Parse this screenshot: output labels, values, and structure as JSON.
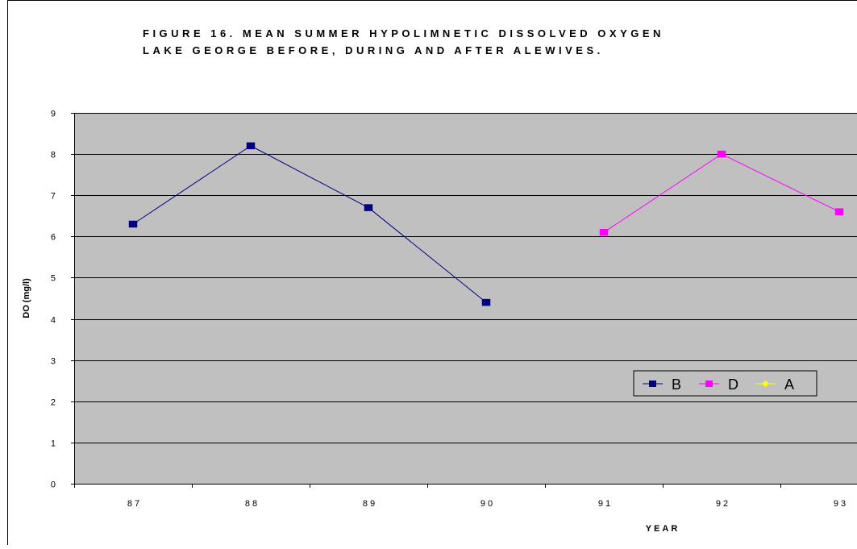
{
  "chart_data": {
    "type": "line",
    "title_lines": [
      "FIGURE 16. MEAN SUMMER HYPOLIMNETIC DISSOLVED OXYGEN",
      "LAKE GEORGE BEFORE, DURING AND AFTER ALEWIVES."
    ],
    "xlabel": "YEAR",
    "ylabel": "DO (mg/l)",
    "categories": [
      "87",
      "88",
      "89",
      "90",
      "91",
      "92",
      "93"
    ],
    "ylim": [
      0,
      9
    ],
    "yticks": [
      "0",
      "1",
      "2",
      "3",
      "4",
      "5",
      "6",
      "7",
      "8",
      "9"
    ],
    "grid": true,
    "legend_position": "lower-right",
    "plot_background": "#c0c0c0",
    "series": [
      {
        "name": "B",
        "color": "#000080",
        "values": [
          6.3,
          8.2,
          6.7,
          4.4,
          null,
          null,
          null
        ]
      },
      {
        "name": "D",
        "color": "#ff00ff",
        "values": [
          null,
          null,
          null,
          null,
          6.1,
          8.0,
          6.6
        ]
      },
      {
        "name": "A",
        "color": "#ffff00",
        "values": [
          null,
          null,
          null,
          null,
          null,
          null,
          null
        ]
      }
    ]
  }
}
